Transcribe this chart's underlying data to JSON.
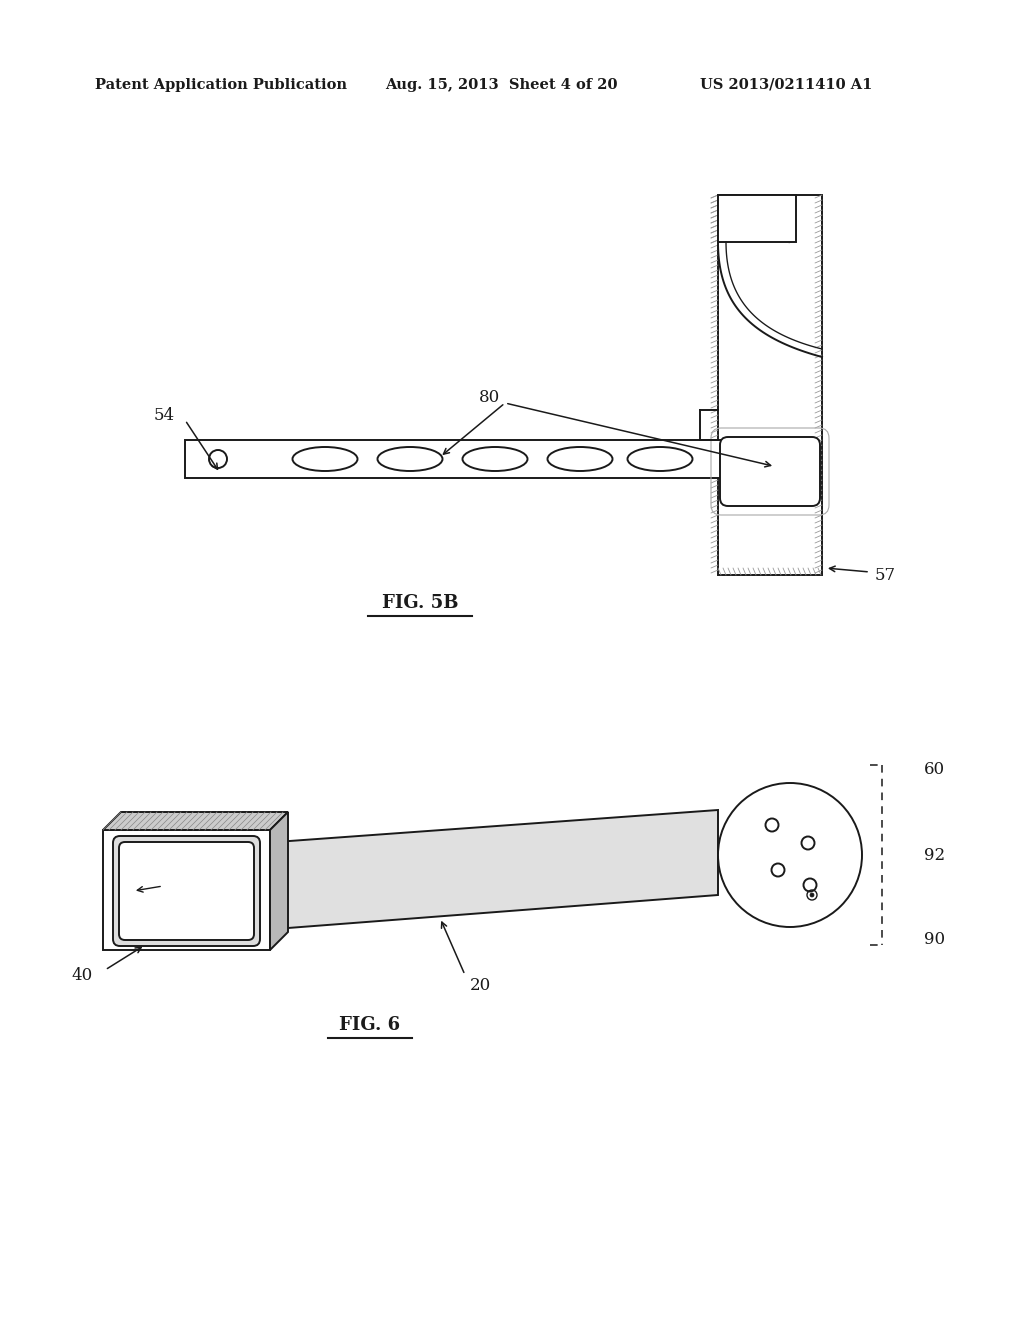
{
  "bg_color": "#ffffff",
  "text_color": "#1a1a1a",
  "header_left": "Patent Application Publication",
  "header_mid": "Aug. 15, 2013  Sheet 4 of 20",
  "header_right": "US 2013/0211410 A1",
  "fig5b_label": "FIG. 5B",
  "fig6_label": "FIG. 6",
  "label_54": "54",
  "label_57": "57",
  "label_80": "80",
  "label_40": "40",
  "label_20": "20",
  "label_60": "60",
  "label_90": "90",
  "label_92": "92",
  "lw": 1.4,
  "ec": "#1a1a1a",
  "hatch_gray": "#aaaaaa"
}
